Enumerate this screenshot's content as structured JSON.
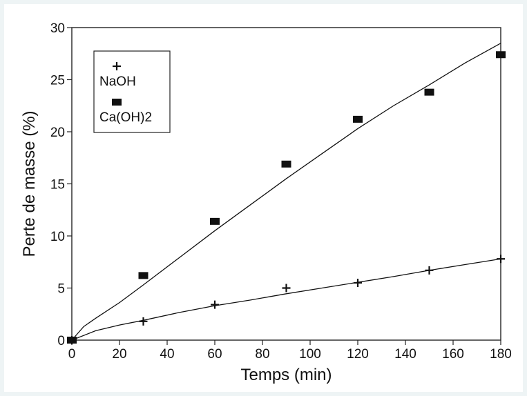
{
  "chart_data": {
    "type": "scatter",
    "xlabel": "Temps  (min)",
    "ylabel": "Perte de masse (%)",
    "xlim": [
      0,
      180
    ],
    "ylim": [
      0,
      30
    ],
    "xticks": [
      0,
      20,
      40,
      60,
      80,
      100,
      120,
      140,
      160,
      180
    ],
    "yticks": [
      0,
      5,
      10,
      15,
      20,
      25,
      30
    ],
    "grid": false,
    "legend_position": "top-left",
    "series": [
      {
        "name": "NaOH",
        "marker": "plus",
        "color": "#111111",
        "x": [
          0,
          30,
          60,
          90,
          120,
          150,
          180
        ],
        "y": [
          0,
          1.8,
          3.4,
          5.0,
          5.5,
          6.7,
          7.8
        ],
        "fit_curve": {
          "x": [
            0,
            10,
            20,
            30,
            45,
            60,
            75,
            90,
            105,
            120,
            135,
            150,
            165,
            180
          ],
          "y": [
            0,
            0.9,
            1.45,
            1.9,
            2.65,
            3.3,
            3.85,
            4.45,
            5.0,
            5.55,
            6.1,
            6.7,
            7.25,
            7.8
          ]
        }
      },
      {
        "name": "Ca(OH)2",
        "marker": "square",
        "color": "#111111",
        "x": [
          0,
          30,
          60,
          90,
          120,
          150,
          180
        ],
        "y": [
          0,
          6.2,
          11.4,
          16.9,
          21.2,
          23.8,
          27.4
        ],
        "fit_curve": {
          "x": [
            0,
            5,
            10,
            20,
            30,
            45,
            60,
            75,
            90,
            105,
            120,
            135,
            150,
            165,
            180
          ],
          "y": [
            0,
            1.3,
            2.1,
            3.6,
            5.3,
            7.9,
            10.5,
            13.0,
            15.5,
            17.9,
            20.3,
            22.5,
            24.5,
            26.6,
            28.5
          ]
        }
      }
    ]
  }
}
